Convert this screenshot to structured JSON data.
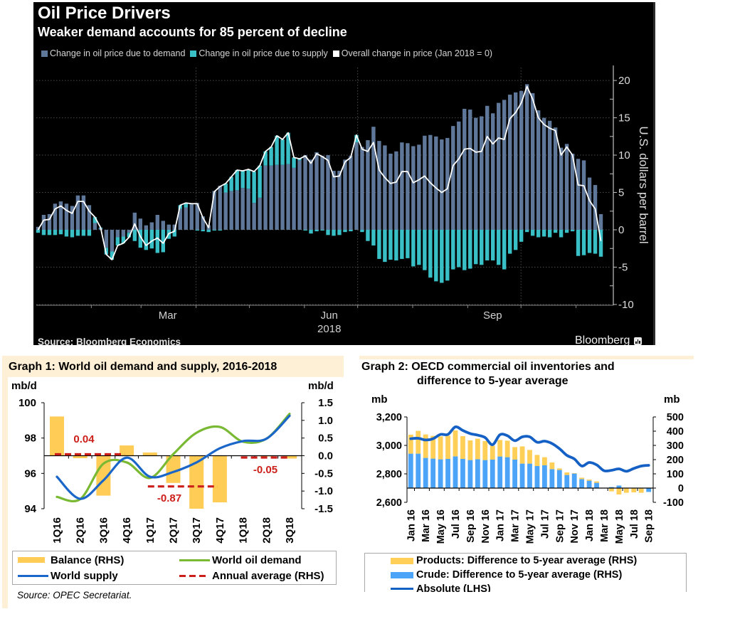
{
  "bloomberg_panel": {
    "title": "Oil Price Drivers",
    "subtitle": "Weaker demand accounts for 85 percent of decline",
    "legend": [
      {
        "label": "Change in oil price due to demand",
        "color": "#5f7899"
      },
      {
        "label": "Change in oil price due to supply",
        "color": "#39c0c7"
      },
      {
        "label": "Overall change in price (Jan 2018 = 0)",
        "color": "#ffffff"
      }
    ],
    "source": "Source: Bloomberg Economics",
    "brand": "Bloomberg",
    "brand_icon": "bloomberg-chart-icon"
  },
  "graph1": {
    "title": "Graph 1: World oil demand and supply, 2016-2018",
    "unit_left": "mb/d",
    "unit_right": "mb/d",
    "legend": [
      {
        "label": "Balance (RHS)",
        "color": "#ffcc55",
        "style": "bar"
      },
      {
        "label": "World oil demand",
        "color": "#79b933",
        "style": "line"
      },
      {
        "label": "World supply",
        "color": "#1a66c9",
        "style": "line"
      },
      {
        "label": "Annual average (RHS)",
        "color": "#cc1f1a",
        "style": "dashed"
      }
    ],
    "source": "Source: OPEC Secretariat."
  },
  "graph2": {
    "title_line1": "Graph 2: OECD commercial oil inventories and",
    "title_line2": "difference to 5-year average",
    "unit_left": "mb",
    "unit_right": "mb",
    "legend": [
      {
        "label": "Products: Difference to 5-year average (RHS)",
        "color": "#ffcf57",
        "style": "bar"
      },
      {
        "label": "Crude: Difference to 5-year average (RHS)",
        "color": "#4ba4f7",
        "style": "bar"
      },
      {
        "label": "Absolute (LHS)",
        "color": "#1460c4",
        "style": "line"
      }
    ]
  },
  "chart_data": [
    {
      "type": "bar",
      "title": "Oil Price Drivers",
      "subtitle": "Weaker demand accounts for 85 percent of decline",
      "xlabel": "2018",
      "ylabel": "U.S. dollars per barrel",
      "x_domain": [
        "2018-01-01",
        "2018-11-22"
      ],
      "x_start": "2018-01-02",
      "x_end": "2018-11-15",
      "x_tick_labels": [
        {
          "label": "Mar",
          "date": "2018-03-16"
        },
        {
          "label": "Jun",
          "date": "2018-06-15"
        },
        {
          "label": "Sep",
          "date": "2018-09-15"
        }
      ],
      "x_year_label": {
        "label": "2018",
        "date": "2018-06-15"
      },
      "month_ticks": [
        "2018-02-01",
        "2018-03-01",
        "2018-04-01",
        "2018-05-01",
        "2018-06-01",
        "2018-07-01",
        "2018-08-01",
        "2018-09-01",
        "2018-10-01",
        "2018-11-01"
      ],
      "x_gridlines": [
        "2018-04-01",
        "2018-07-01",
        "2018-10-01"
      ],
      "ylim": [
        -10.1,
        22.2
      ],
      "y_ticks": [
        -10,
        -5,
        0,
        5,
        10,
        15,
        20
      ],
      "y_tick_labels": [
        "-10",
        "-5",
        "0",
        "5",
        "10",
        "15",
        "20"
      ],
      "y_axis_side": "right",
      "grid": true,
      "legend_position": "top-left",
      "series": [
        {
          "name": "Change in oil price due to demand",
          "type": "bar",
          "color": "#5f7899",
          "values": [
            0.4,
            2.0,
            2.1,
            3.5,
            3.8,
            3.5,
            3.2,
            4.6,
            4.6,
            3.3,
            0.9,
            0.2,
            -2.4,
            -2.9,
            -1.0,
            -0.9,
            -0.4,
            2.3,
            1.5,
            0.6,
            1.0,
            2.0,
            1.2,
            0.7,
            0.7,
            2.8,
            3.0,
            3.5,
            3.6,
            1.8,
            0.6,
            5.2,
            5.9,
            5.0,
            5.2,
            5.3,
            5.6,
            5.5,
            3.6,
            4.3,
            8.6,
            8.6,
            8.7,
            8.7,
            8.8,
            8.3,
            9.3,
            10.0,
            9.4,
            10.4,
            9.9,
            10.0,
            7.9,
            7.9,
            9.4,
            9.9,
            11.7,
            11.1,
            12.0,
            13.8,
            11.9,
            11.3,
            10.2,
            10.5,
            11.7,
            11.6,
            11.2,
            11.4,
            12.6,
            12.7,
            12.5,
            12.1,
            12.3,
            13.9,
            14.5,
            16.2,
            16.1,
            15.0,
            15.2,
            16.6,
            15.6,
            17.0,
            17.4,
            18.1,
            18.4,
            18.6,
            19.5,
            18.3,
            16.0,
            15.0,
            14.6,
            13.7,
            11.0,
            11.5,
            10.2,
            9.5,
            9.3,
            7.0,
            6.0,
            2.1
          ]
        },
        {
          "name": "Change in oil price due to supply",
          "type": "bar",
          "color": "#39c0c7",
          "values": [
            -0.4,
            -0.7,
            -0.7,
            -0.7,
            -0.6,
            -0.9,
            -1.0,
            -0.8,
            -0.8,
            -0.8,
            0.8,
            0.1,
            -0.9,
            -1.1,
            -1.1,
            -0.9,
            -0.6,
            -1.5,
            -2.4,
            -2.7,
            -2.5,
            -3.1,
            -3.0,
            -1.2,
            -0.9,
            0.5,
            0.6,
            0.0,
            -0.1,
            -0.2,
            -0.3,
            -0.1,
            -0.1,
            1.2,
            1.9,
            2.7,
            2.3,
            2.6,
            4.2,
            4.3,
            1.9,
            2.5,
            3.9,
            3.4,
            4.2,
            1.4,
            0.2,
            -0.1,
            -0.5,
            -0.2,
            -0.1,
            -0.7,
            -0.8,
            -0.7,
            -0.3,
            -0.2,
            1.0,
            -0.3,
            -1.5,
            -2.1,
            -3.9,
            -4.3,
            -4.0,
            -4.1,
            -3.9,
            -3.8,
            -4.9,
            -4.7,
            -5.4,
            -6.4,
            -6.9,
            -7.1,
            -6.8,
            -5.3,
            -5.0,
            -5.4,
            -5.2,
            -4.6,
            -4.7,
            -4.1,
            -4.1,
            -4.7,
            -5.3,
            -3.2,
            -2.7,
            -1.6,
            -0.3,
            -0.8,
            -1.0,
            -0.9,
            -1.0,
            -0.4,
            -1.0,
            -0.4,
            -0.2,
            -3.5,
            -3.4,
            -3.1,
            -3.2,
            -3.6
          ]
        },
        {
          "name": "Overall change in price (Jan 2018 = 0)",
          "type": "line",
          "color": "#ffffff",
          "values": [
            0.0,
            1.3,
            1.4,
            2.8,
            3.2,
            2.6,
            2.2,
            3.8,
            3.8,
            2.5,
            1.7,
            0.3,
            -3.3,
            -4.0,
            -2.1,
            -1.8,
            -1.0,
            0.8,
            -0.9,
            -2.1,
            -1.5,
            -1.1,
            -1.8,
            -0.5,
            -0.2,
            3.3,
            3.6,
            3.5,
            3.5,
            1.6,
            0.3,
            5.1,
            5.8,
            6.2,
            7.1,
            8.0,
            7.9,
            8.1,
            7.8,
            8.6,
            10.5,
            11.1,
            12.6,
            12.1,
            13.0,
            9.7,
            9.5,
            9.9,
            8.9,
            10.2,
            9.8,
            9.3,
            7.1,
            7.2,
            9.1,
            9.7,
            12.7,
            10.8,
            10.5,
            11.7,
            8.0,
            7.0,
            6.2,
            6.4,
            7.8,
            7.8,
            6.3,
            6.7,
            7.2,
            6.3,
            5.6,
            5.0,
            5.5,
            8.6,
            9.5,
            10.8,
            10.9,
            10.4,
            10.5,
            12.5,
            11.5,
            12.3,
            12.1,
            14.9,
            15.7,
            17.0,
            19.2,
            17.5,
            15.0,
            14.1,
            13.6,
            13.3,
            10.0,
            11.1,
            10.0,
            6.0,
            5.9,
            3.9,
            2.8,
            -1.5
          ]
        }
      ],
      "source": "Source: Bloomberg Economics"
    },
    {
      "type": "bar",
      "title": "Graph 1: World oil demand and supply, 2016-2018",
      "categories": [
        "1Q16",
        "2Q16",
        "3Q16",
        "4Q16",
        "1Q17",
        "2Q17",
        "3Q17",
        "4Q17",
        "1Q18",
        "2Q18",
        "3Q18"
      ],
      "ylabel_left": "mb/d",
      "ylabel_right": "mb/d",
      "ylim_left": [
        94,
        100
      ],
      "yticks_left": [
        94,
        96,
        98,
        100
      ],
      "yticks_left_labels": [
        "94",
        "96",
        "98",
        "100"
      ],
      "ylim_right": [
        -1.5,
        1.5
      ],
      "yticks_right": [
        -1.5,
        -1.0,
        -0.5,
        0.0,
        0.5,
        1.0,
        1.5
      ],
      "yticks_right_labels": [
        "-1.5",
        "-1.0",
        "-0.5",
        "0.0",
        "0.5",
        "1.0",
        "1.5"
      ],
      "grid": false,
      "legend_position": "bottom",
      "series": [
        {
          "name": "Balance (RHS)",
          "type": "bar",
          "axis": "right",
          "color": "#ffcc55",
          "values": [
            1.11,
            -0.07,
            -1.13,
            0.29,
            0.09,
            -0.77,
            -1.5,
            -1.32,
            -0.01,
            -0.02,
            -0.08
          ]
        },
        {
          "name": "World oil demand",
          "type": "line",
          "axis": "left",
          "color": "#79b933",
          "values": [
            94.67,
            94.54,
            96.55,
            96.62,
            95.74,
            97.09,
            98.3,
            98.63,
            97.79,
            97.96,
            99.37
          ]
        },
        {
          "name": "World supply",
          "type": "line",
          "axis": "left",
          "color": "#1a66c9",
          "values": [
            95.81,
            94.56,
            95.61,
            96.89,
            95.81,
            96.08,
            96.62,
            97.42,
            97.83,
            97.96,
            99.26
          ]
        },
        {
          "name": "Annual average (RHS)",
          "type": "dashed-segments",
          "axis": "right",
          "color": "#cc1f1a",
          "segments": [
            {
              "from": 0,
              "to": 3,
              "value": 0.04,
              "label": "0.04"
            },
            {
              "from": 4,
              "to": 7,
              "value": -0.87,
              "label": "-0.87"
            },
            {
              "from": 8,
              "to": 10,
              "value": -0.05,
              "label": "-0.05"
            }
          ]
        }
      ],
      "source": "Source: OPEC Secretariat."
    },
    {
      "type": "bar",
      "title": "Graph 2: OECD commercial oil inventories and difference to 5-year average",
      "categories": [
        "Jan 16",
        "Feb 16",
        "Mar 16",
        "Apr 16",
        "May 16",
        "Jun 16",
        "Jul 16",
        "Aug 16",
        "Sep 16",
        "Oct 16",
        "Nov 16",
        "Dec 16",
        "Jan 17",
        "Feb 17",
        "Mar 17",
        "Apr 17",
        "May 17",
        "Jun 17",
        "Jul 17",
        "Aug 17",
        "Sep 17",
        "Oct 17",
        "Nov 17",
        "Dec 17",
        "Jan 18",
        "Feb 18",
        "Mar 18",
        "Apr 18",
        "May 18",
        "Jun 18",
        "Jul 18",
        "Aug 18",
        "Sep 18"
      ],
      "x_tick_every": 2,
      "ylabel_left": "mb",
      "ylabel_right": "mb",
      "ylim_left": [
        2600,
        3200
      ],
      "yticks_left": [
        2600,
        2800,
        3000,
        3200
      ],
      "yticks_left_labels": [
        "2,600",
        "2,800",
        "3,000",
        "3,200"
      ],
      "ylim_right": [
        -100,
        500
      ],
      "yticks_right": [
        -100,
        0,
        100,
        200,
        300,
        400,
        500
      ],
      "yticks_right_labels": [
        "-100",
        "0",
        "100",
        "200",
        "300",
        "400",
        "500"
      ],
      "grid": false,
      "legend_position": "bottom",
      "series": [
        {
          "name": "Products: Difference to 5-year average (RHS)",
          "type": "stacked-bar",
          "axis": "right",
          "color": "#ffcf57",
          "values": [
            133,
            160,
            165,
            160,
            161,
            163,
            182,
            160,
            138,
            144,
            133,
            97,
            116,
            116,
            88,
            121,
            96,
            78,
            57,
            47,
            11,
            18,
            3,
            10,
            8,
            10,
            0,
            -23,
            -45,
            -33,
            -30,
            -30,
            0
          ]
        },
        {
          "name": "Crude: Difference to 5-year average (RHS)",
          "type": "stacked-bar",
          "axis": "right",
          "color": "#4ba4f7",
          "values": [
            242,
            242,
            212,
            207,
            202,
            205,
            223,
            205,
            197,
            203,
            197,
            200,
            222,
            217,
            200,
            172,
            172,
            155,
            160,
            133,
            127,
            92,
            102,
            63,
            52,
            37,
            0,
            7,
            18,
            0,
            0,
            -3,
            -27
          ]
        },
        {
          "name": "Absolute (LHS)",
          "type": "line",
          "axis": "left",
          "color": "#1460c4",
          "values": [
            3047,
            3050,
            3038,
            3047,
            3077,
            3077,
            3130,
            3105,
            3083,
            3072,
            3055,
            3005,
            3075,
            3068,
            3033,
            3060,
            3060,
            3022,
            3030,
            3013,
            2977,
            2930,
            2905,
            2855,
            2880,
            2863,
            2822,
            2825,
            2835,
            2818,
            2838,
            2855,
            2860
          ]
        }
      ]
    }
  ]
}
